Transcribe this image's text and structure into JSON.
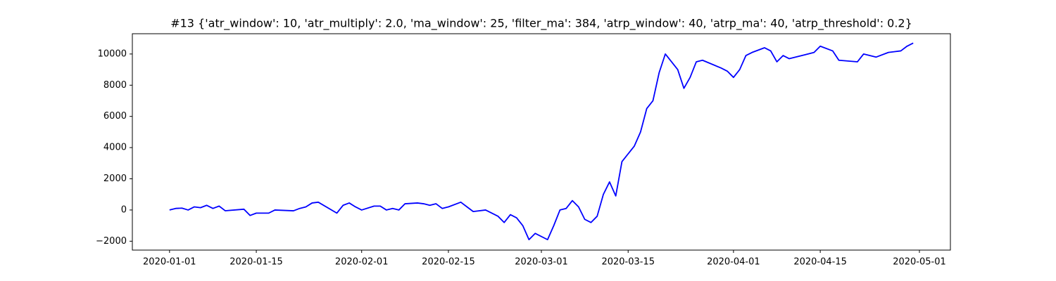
{
  "chart_data": {
    "type": "line",
    "title": "#13 {'atr_window': 10, 'atr_multiply': 2.0, 'ma_window': 25, 'filter_ma': 384, 'atrp_window': 40, 'atrp_ma': 40, 'atrp_threshold': 0.2}",
    "x": [
      "2020-01-01",
      "2020-01-02",
      "2020-01-03",
      "2020-01-04",
      "2020-01-05",
      "2020-01-06",
      "2020-01-07",
      "2020-01-08",
      "2020-01-09",
      "2020-01-10",
      "2020-01-13",
      "2020-01-14",
      "2020-01-15",
      "2020-01-17",
      "2020-01-18",
      "2020-01-21",
      "2020-01-22",
      "2020-01-23",
      "2020-01-24",
      "2020-01-25",
      "2020-01-28",
      "2020-01-29",
      "2020-01-30",
      "2020-01-31",
      "2020-02-01",
      "2020-02-03",
      "2020-02-04",
      "2020-02-05",
      "2020-02-06",
      "2020-02-07",
      "2020-02-08",
      "2020-02-10",
      "2020-02-11",
      "2020-02-12",
      "2020-02-13",
      "2020-02-14",
      "2020-02-15",
      "2020-02-17",
      "2020-02-18",
      "2020-02-19",
      "2020-02-21",
      "2020-02-23",
      "2020-02-24",
      "2020-02-25",
      "2020-02-26",
      "2020-02-27",
      "2020-02-28",
      "2020-02-29",
      "2020-03-02",
      "2020-03-03",
      "2020-03-04",
      "2020-03-05",
      "2020-03-06",
      "2020-03-07",
      "2020-03-08",
      "2020-03-09",
      "2020-03-10",
      "2020-03-11",
      "2020-03-12",
      "2020-03-13",
      "2020-03-14",
      "2020-03-16",
      "2020-03-17",
      "2020-03-18",
      "2020-03-19",
      "2020-03-20",
      "2020-03-21",
      "2020-03-23",
      "2020-03-24",
      "2020-03-25",
      "2020-03-26",
      "2020-03-27",
      "2020-03-30",
      "2020-03-31",
      "2020-04-01",
      "2020-04-02",
      "2020-04-03",
      "2020-04-04",
      "2020-04-06",
      "2020-04-07",
      "2020-04-08",
      "2020-04-09",
      "2020-04-10",
      "2020-04-14",
      "2020-04-15",
      "2020-04-17",
      "2020-04-18",
      "2020-04-21",
      "2020-04-22",
      "2020-04-24",
      "2020-04-26",
      "2020-04-28",
      "2020-04-29",
      "2020-04-30"
    ],
    "series": [
      {
        "color": "#0000ff",
        "values": [
          0,
          100,
          120,
          0,
          200,
          150,
          300,
          100,
          250,
          -50,
          50,
          -350,
          -200,
          -200,
          0,
          -50,
          100,
          200,
          450,
          500,
          -200,
          300,
          450,
          200,
          0,
          250,
          250,
          0,
          100,
          0,
          400,
          450,
          400,
          300,
          400,
          100,
          200,
          500,
          200,
          -100,
          0,
          -400,
          -800,
          -300,
          -500,
          -1000,
          -1900,
          -1500,
          -1900,
          -1000,
          0,
          100,
          600,
          200,
          -600,
          -800,
          -400,
          1000,
          1800,
          900,
          3100,
          4100,
          5000,
          6500,
          7000,
          8800,
          10000,
          9000,
          7800,
          8500,
          9500,
          9600,
          9100,
          8900,
          8500,
          9000,
          9900,
          10100,
          10400,
          10200,
          9500,
          9900,
          9700,
          10100,
          10500,
          10200,
          9600,
          9500,
          10000,
          9800,
          10100,
          10200,
          10500,
          10700
        ]
      }
    ],
    "xlim": [
      "2019-12-26",
      "2020-05-06"
    ],
    "xticks": [
      "2020-01-01",
      "2020-01-15",
      "2020-02-01",
      "2020-02-15",
      "2020-03-01",
      "2020-03-15",
      "2020-04-01",
      "2020-04-15",
      "2020-05-01"
    ],
    "ylim": [
      -2570,
      11300
    ],
    "yticks": [
      {
        "value": -2000,
        "label": "−2000"
      },
      0,
      2000,
      4000,
      6000,
      8000,
      10000
    ]
  }
}
